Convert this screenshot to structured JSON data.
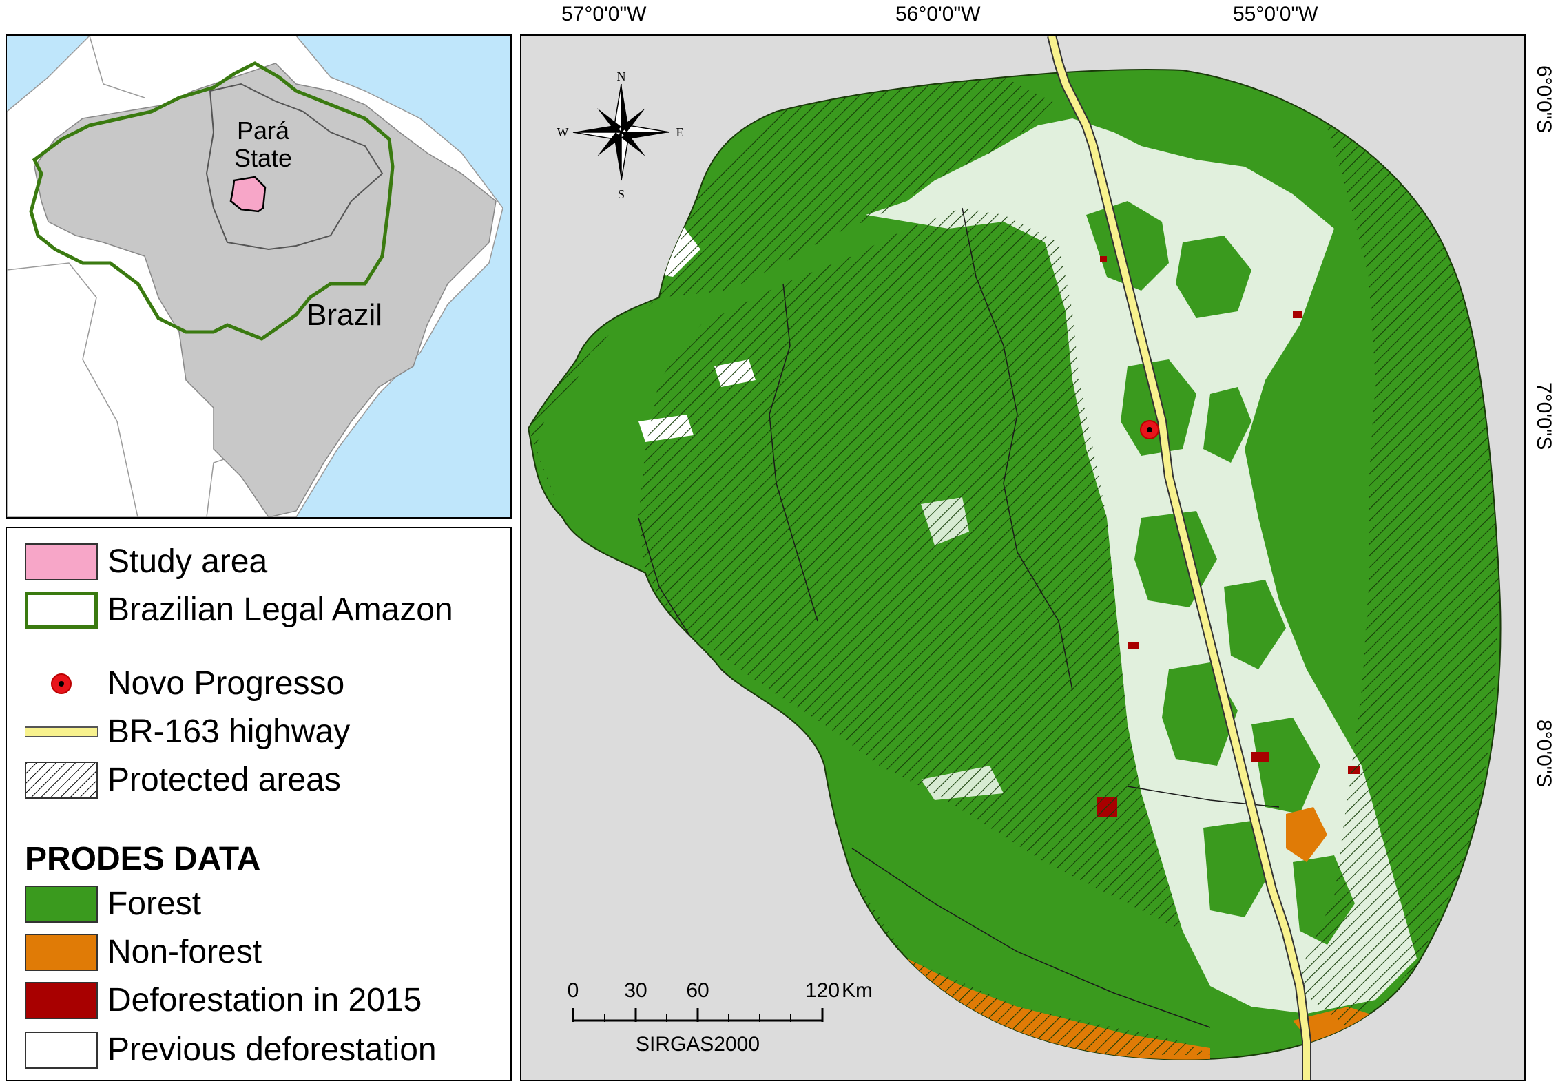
{
  "inset": {
    "state_label_line1": "Pará",
    "state_label_line2": "State",
    "country_label": "Brazil"
  },
  "legend": {
    "items": [
      {
        "label": "Study area",
        "symbol": "pink-box",
        "color": "#f7a6c8"
      },
      {
        "label": "Brazilian Legal Amazon",
        "symbol": "green-outline-box",
        "color": "#3a7a10"
      },
      {
        "label": "Novo Progresso",
        "symbol": "red-dot",
        "color": "#e8141b"
      },
      {
        "label": "BR-163 highway",
        "symbol": "yellow-line",
        "color": "#f8f28e"
      },
      {
        "label": "Protected areas",
        "symbol": "hatch-box"
      }
    ],
    "prodes_heading": "PRODES DATA",
    "prodes_items": [
      {
        "label": "Forest",
        "color": "#3a9a1e"
      },
      {
        "label": "Non-forest",
        "color": "#e07b06"
      },
      {
        "label": "Deforestation in 2015",
        "color": "#a80000"
      },
      {
        "label": "Previous deforestation",
        "color": "#ffffff"
      }
    ]
  },
  "graticule": {
    "top": [
      "57°0'0\"W",
      "56°0'0\"W",
      "55°0'0\"W"
    ],
    "right": [
      "6°0'0\"S",
      "7°0'0\"S",
      "8°0'0\"S"
    ]
  },
  "compass": {
    "n": "N",
    "s": "S",
    "e": "E",
    "w": "W"
  },
  "scalebar": {
    "ticks": [
      "0",
      "30",
      "60",
      "120"
    ],
    "unit": "Km",
    "datum": "SIRGAS2000"
  }
}
